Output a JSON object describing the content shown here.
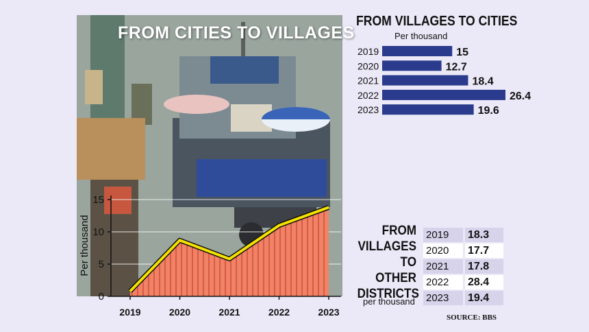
{
  "photo": {
    "title": "FROM CITIES TO VILLAGES"
  },
  "chart_data": [
    {
      "type": "area",
      "title": "FROM CITIES TO VILLAGES",
      "x": [
        "2019",
        "2020",
        "2021",
        "2022",
        "2023"
      ],
      "series": [
        {
          "values": [
            0.8,
            8.7,
            5.8,
            11.0,
            13.8
          ]
        }
      ],
      "ylabel": "Per thousand",
      "yticks": [
        0,
        5,
        10,
        15
      ],
      "ylim": [
        0,
        15
      ],
      "grid": true,
      "colors": {
        "fill": "#f08266",
        "stripe": "#d95a45",
        "line": "#f6e200",
        "outline": "#111111"
      }
    },
    {
      "type": "bar",
      "orientation": "horizontal",
      "title": "FROM VILLAGES  TO CITIES",
      "subtitle": "Per thousand",
      "categories": [
        "2019",
        "2020",
        "2021",
        "2022",
        "2023"
      ],
      "values": [
        15,
        12.7,
        18.4,
        26.4,
        19.6
      ],
      "labels": [
        "15",
        "12.7",
        "18.4",
        "26.4",
        "19.6"
      ],
      "color": "#2a3a8c"
    },
    {
      "type": "table",
      "title_lines": [
        "FROM",
        "VILLAGES",
        "TO OTHER",
        "DISTRICTS"
      ],
      "unit": "per thousand",
      "rows": [
        {
          "year": "2019",
          "value": "18.3"
        },
        {
          "year": "2020",
          "value": "17.7"
        },
        {
          "year": "2021",
          "value": "17.8"
        },
        {
          "year": "2022",
          "value": "28.4"
        },
        {
          "year": "2023",
          "value": "19.4"
        }
      ]
    }
  ],
  "source": "SOURCE: BBS"
}
